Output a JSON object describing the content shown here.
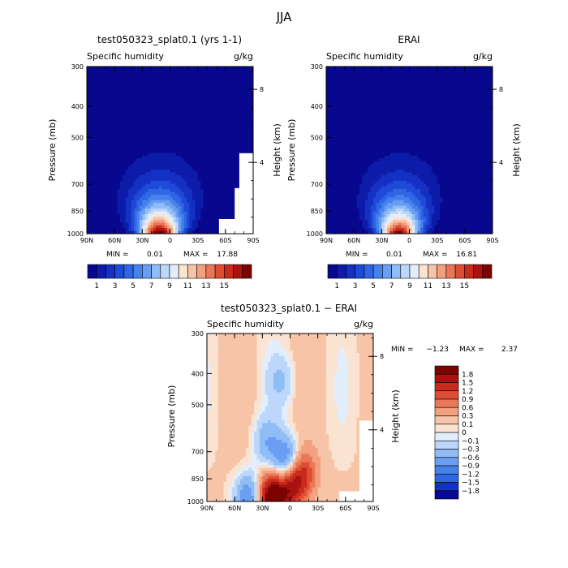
{
  "figure_title": "JJA",
  "colors": {
    "humidity_scale": [
      "#08088f",
      "#0d1ca8",
      "#1531c4",
      "#1f4ad8",
      "#2f66e3",
      "#4782ec",
      "#6a9ef2",
      "#91bdf6",
      "#bcd7fa",
      "#e3eefc",
      "#fbe3d2",
      "#f8c4a7",
      "#f3a07e",
      "#ea7757",
      "#dd4e34",
      "#c82a1c",
      "#a8120f",
      "#7d0303"
    ],
    "diff_scale": [
      "#08088f",
      "#1531c4",
      "#2f66e3",
      "#4782ec",
      "#6a9ef2",
      "#91bdf6",
      "#bcd7fa",
      "#e3eefc",
      "#fbe3d2",
      "#f8c4a7",
      "#f3a07e",
      "#ea7757",
      "#dd4e34",
      "#c82a1c",
      "#a8120f",
      "#7d0303"
    ]
  },
  "chart_data": [
    {
      "type": "heatmap",
      "title": "test050323_splat0.1 (yrs 1-1)",
      "subtitle_left": "Specific humidity",
      "subtitle_right": "g/kg",
      "ylabel": "Pressure (mb)",
      "ylabel_right": "Height (km)",
      "x_ticks": [
        "90N",
        "60N",
        "30N",
        "0",
        "30S",
        "60S",
        "90S"
      ],
      "x_values": [
        90,
        60,
        30,
        0,
        -30,
        -60,
        -90
      ],
      "y_ticks": [
        "300",
        "400",
        "500",
        "700",
        "850",
        "1000"
      ],
      "y_values": [
        300,
        400,
        500,
        700,
        850,
        1000
      ],
      "y_scale": "log",
      "height_ticks": [
        "8",
        "4"
      ],
      "height_values": [
        8,
        4
      ],
      "ylim": [
        300,
        1000
      ],
      "xlim": [
        90,
        -90
      ],
      "stats": {
        "min_label": "MIN =",
        "min": "0.01",
        "max_label": "MAX =",
        "max": "17.88"
      },
      "colorbar_labels": [
        "1",
        "3",
        "5",
        "7",
        "9",
        "11",
        "13",
        "15"
      ],
      "colorbar_levels": [
        1,
        2,
        3,
        4,
        5,
        6,
        7,
        8,
        9,
        10,
        11,
        12,
        13,
        14,
        15,
        16,
        17
      ],
      "peak_lat": 10,
      "peak_value": 17.88,
      "masked_region": "southern polar lower troposphere"
    },
    {
      "type": "heatmap",
      "title": "ERAI",
      "subtitle_left": "Specific humidity",
      "subtitle_right": "g/kg",
      "ylabel": "Pressure (mb)",
      "ylabel_right": "Height (km)",
      "x_ticks": [
        "90N",
        "60N",
        "30N",
        "0",
        "30S",
        "60S",
        "90S"
      ],
      "x_values": [
        90,
        60,
        30,
        0,
        -30,
        -60,
        -90
      ],
      "y_ticks": [
        "300",
        "400",
        "500",
        "700",
        "850",
        "1000"
      ],
      "y_values": [
        300,
        400,
        500,
        700,
        850,
        1000
      ],
      "y_scale": "log",
      "height_ticks": [
        "8",
        "4"
      ],
      "height_values": [
        8,
        4
      ],
      "ylim": [
        300,
        1000
      ],
      "xlim": [
        90,
        -90
      ],
      "stats": {
        "min_label": "MIN =",
        "min": "0.01",
        "max_label": "MAX =",
        "max": "16.81"
      },
      "colorbar_labels": [
        "1",
        "3",
        "5",
        "7",
        "9",
        "11",
        "13",
        "15"
      ],
      "colorbar_levels": [
        1,
        2,
        3,
        4,
        5,
        6,
        7,
        8,
        9,
        10,
        11,
        12,
        13,
        14,
        15,
        16,
        17
      ],
      "peak_lat": 10,
      "peak_value": 16.81
    },
    {
      "type": "heatmap",
      "title": "test050323_splat0.1 − ERAI",
      "subtitle_left": "Specific humidity",
      "subtitle_right": "g/kg",
      "ylabel": "Pressure (mb)",
      "ylabel_right": "Height (km)",
      "x_ticks": [
        "90N",
        "60N",
        "30N",
        "0",
        "30S",
        "60S",
        "90S"
      ],
      "x_values": [
        90,
        60,
        30,
        0,
        -30,
        -60,
        -90
      ],
      "y_ticks": [
        "300",
        "400",
        "500",
        "700",
        "850",
        "1000"
      ],
      "y_values": [
        300,
        400,
        500,
        700,
        850,
        1000
      ],
      "y_scale": "log",
      "height_ticks": [
        "8",
        "4"
      ],
      "height_values": [
        8,
        4
      ],
      "ylim": [
        300,
        1000
      ],
      "xlim": [
        90,
        -90
      ],
      "stats": {
        "min_label": "MIN =",
        "min": "−1.23",
        "max_label": "MAX =",
        "max": "2.37"
      },
      "colorbar_labels": [
        "1.8",
        "1.5",
        "1.2",
        "0.9",
        "0.6",
        "0.3",
        "0.1",
        "0",
        "−0.1",
        "−0.3",
        "−0.6",
        "−0.9",
        "−1.2",
        "−1.5",
        "−1.8"
      ],
      "colorbar_levels": [
        1.8,
        1.5,
        1.2,
        0.9,
        0.6,
        0.3,
        0.1,
        0,
        -0.1,
        -0.3,
        -0.6,
        -0.9,
        -1.2,
        -1.5,
        -1.8
      ],
      "features": [
        {
          "lat": 20,
          "p": 980,
          "diff": 2.3
        },
        {
          "lat": 0,
          "p": 900,
          "diff": 1.5
        },
        {
          "lat": -15,
          "p": 820,
          "diff": 1.0
        },
        {
          "lat": 5,
          "p": 750,
          "diff": -1.23
        },
        {
          "lat": 45,
          "p": 980,
          "diff": -1.1
        },
        {
          "lat": 25,
          "p": 650,
          "diff": -0.6
        },
        {
          "lat": 10,
          "p": 420,
          "diff": -0.4
        }
      ],
      "masked_region": "southern polar lower troposphere"
    }
  ]
}
